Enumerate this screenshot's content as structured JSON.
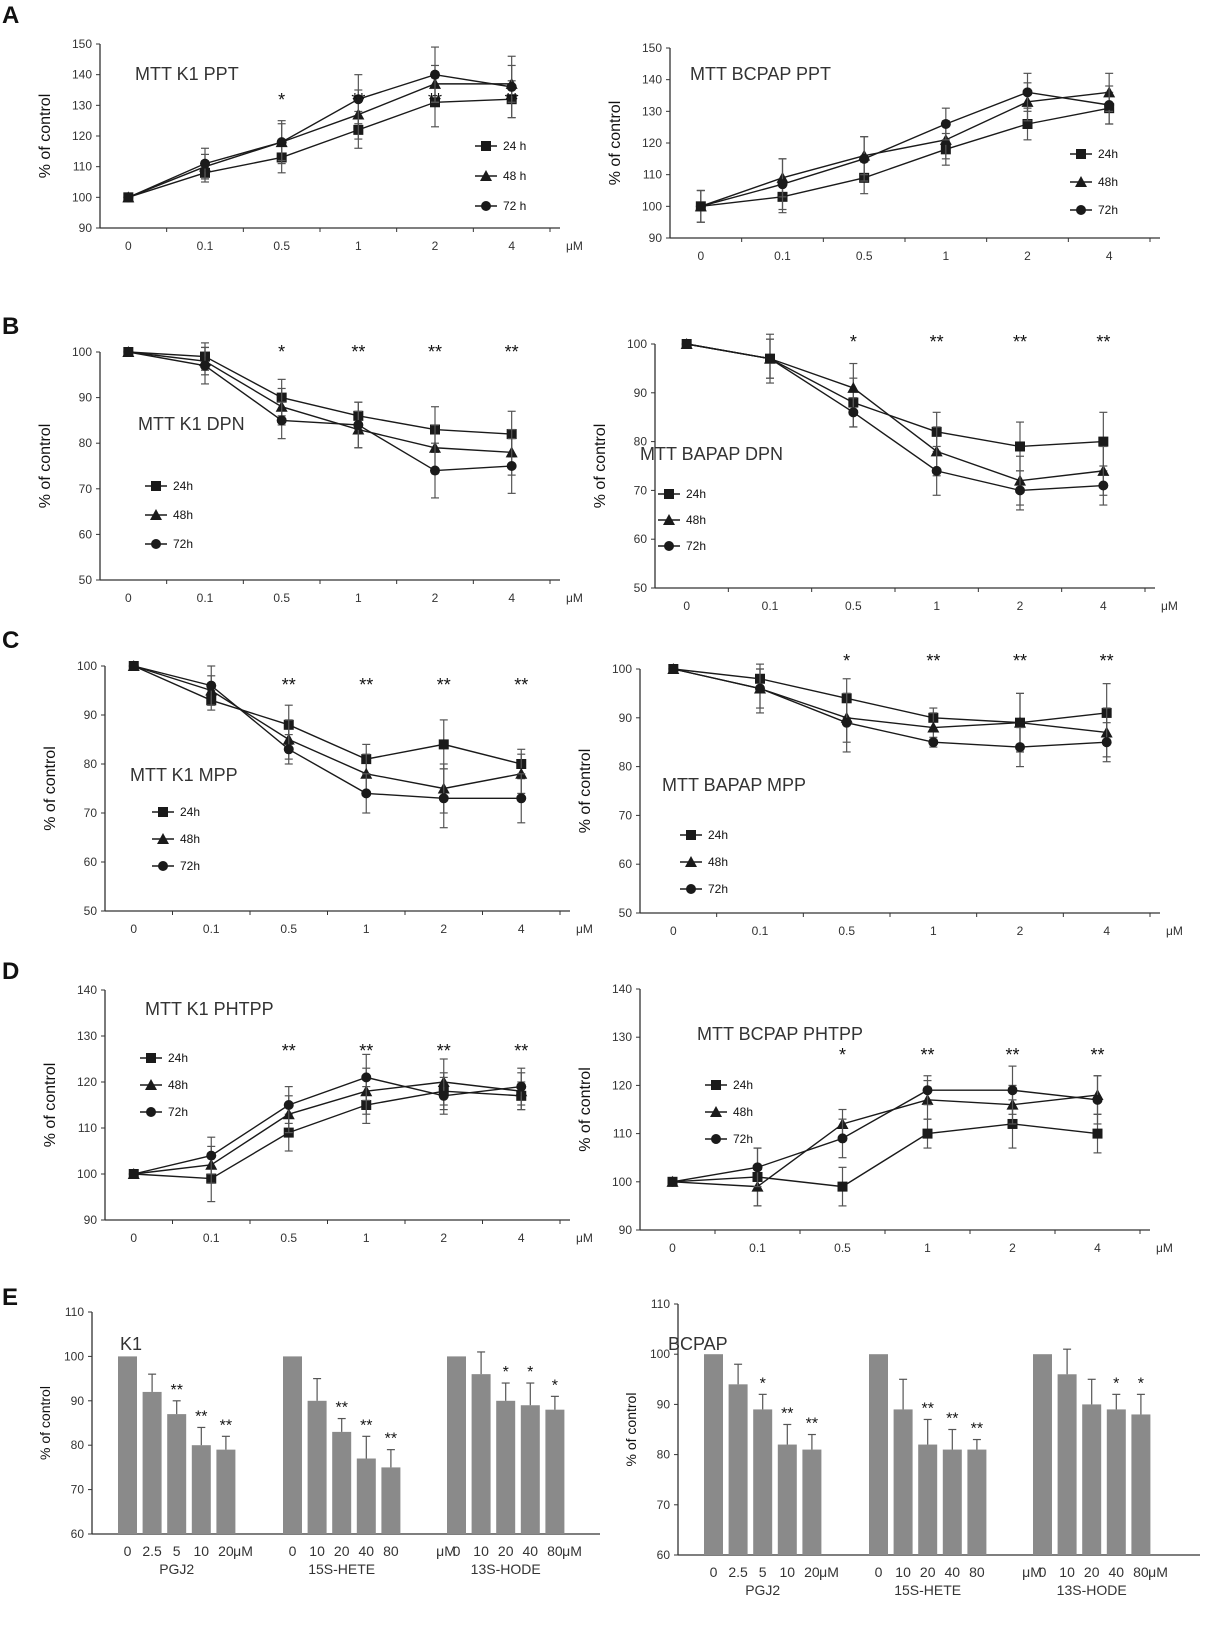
{
  "panels": [
    {
      "letter": "A"
    },
    {
      "letter": "B"
    },
    {
      "letter": "C"
    },
    {
      "letter": "D"
    },
    {
      "letter": "E"
    }
  ],
  "colors": {
    "series": "#1a1a1a",
    "bar": "#8a8a8a",
    "error": "#555555",
    "axis": "#333333"
  },
  "chart_data": [
    {
      "type": "line",
      "id": "A-K1",
      "title": "MTT K1 PPT",
      "ylabel": "% of control",
      "unit": "μM",
      "categories": [
        "0",
        "0.1",
        "0.5",
        "1",
        "2",
        "4"
      ],
      "ylim": [
        90,
        150
      ],
      "yticks": [
        90,
        100,
        110,
        120,
        130,
        140,
        150
      ],
      "significance": [
        "",
        "",
        "*",
        "**",
        "**",
        "**"
      ],
      "series": [
        {
          "name": "24 h",
          "marker": "square",
          "values": [
            100,
            108,
            113,
            122,
            131,
            132
          ],
          "errors": [
            0,
            3,
            5,
            6,
            8,
            6
          ]
        },
        {
          "name": "48 h",
          "marker": "triangle",
          "values": [
            100,
            110,
            118,
            127,
            137,
            137
          ],
          "errors": [
            0,
            4,
            6,
            8,
            6,
            6
          ]
        },
        {
          "name": "72 h",
          "marker": "circle",
          "values": [
            100,
            111,
            118,
            132,
            140,
            136
          ],
          "errors": [
            0,
            5,
            7,
            8,
            9,
            10
          ]
        }
      ]
    },
    {
      "type": "line",
      "id": "A-BCPAP",
      "title": "MTT BCPAP PPT",
      "ylabel": "% of control",
      "unit": "",
      "categories": [
        "0",
        "0.1",
        "0.5",
        "1",
        "2",
        "4"
      ],
      "ylim": [
        90,
        150
      ],
      "yticks": [
        90,
        100,
        110,
        120,
        130,
        140,
        150
      ],
      "significance": [
        "",
        "",
        "",
        "",
        "",
        ""
      ],
      "series": [
        {
          "name": "24h",
          "marker": "square",
          "values": [
            100,
            103,
            109,
            118,
            126,
            131
          ],
          "errors": [
            5,
            5,
            5,
            5,
            5,
            5
          ]
        },
        {
          "name": "48h",
          "marker": "triangle",
          "values": [
            100,
            109,
            116,
            121,
            133,
            136
          ],
          "errors": [
            5,
            6,
            6,
            6,
            6,
            6
          ]
        },
        {
          "name": "72h",
          "marker": "circle",
          "values": [
            100,
            107,
            115,
            126,
            136,
            132
          ],
          "errors": [
            5,
            8,
            7,
            5,
            6,
            6
          ]
        }
      ]
    },
    {
      "type": "line",
      "id": "B-K1",
      "title": "MTT K1 DPN",
      "ylabel": "% of control",
      "unit": "μM",
      "categories": [
        "0",
        "0.1",
        "0.5",
        "1",
        "2",
        "4"
      ],
      "ylim": [
        50,
        100
      ],
      "yticks": [
        50,
        60,
        70,
        80,
        90,
        100
      ],
      "significance": [
        "",
        "",
        "*",
        "**",
        "**",
        "**"
      ],
      "series": [
        {
          "name": "24h",
          "marker": "square",
          "values": [
            100,
            99,
            90,
            86,
            83,
            82
          ],
          "errors": [
            0,
            3,
            4,
            3,
            5,
            5
          ]
        },
        {
          "name": "48h",
          "marker": "triangle",
          "values": [
            100,
            98,
            88,
            83,
            79,
            78
          ],
          "errors": [
            0,
            3,
            4,
            4,
            5,
            5
          ]
        },
        {
          "name": "72h",
          "marker": "circle",
          "values": [
            100,
            97,
            85,
            84,
            74,
            75
          ],
          "errors": [
            0,
            4,
            4,
            5,
            6,
            6
          ]
        }
      ]
    },
    {
      "type": "line",
      "id": "B-BAPAP",
      "title": "MTT BAPAP DPN",
      "ylabel": "% of control",
      "unit": "μM",
      "categories": [
        "0",
        "0.1",
        "0.5",
        "1",
        "2",
        "4"
      ],
      "ylim": [
        50,
        100
      ],
      "yticks": [
        50,
        60,
        70,
        80,
        90,
        100
      ],
      "significance": [
        "",
        "",
        "*",
        "**",
        "**",
        "**"
      ],
      "series": [
        {
          "name": "24h",
          "marker": "square",
          "values": [
            100,
            97,
            88,
            82,
            79,
            80
          ],
          "errors": [
            0,
            4,
            5,
            4,
            5,
            6
          ]
        },
        {
          "name": "48h",
          "marker": "triangle",
          "values": [
            100,
            97,
            91,
            78,
            72,
            74
          ],
          "errors": [
            0,
            4,
            5,
            5,
            5,
            5
          ]
        },
        {
          "name": "72h",
          "marker": "circle",
          "values": [
            100,
            97,
            86,
            74,
            70,
            71
          ],
          "errors": [
            0,
            5,
            3,
            5,
            4,
            4
          ]
        }
      ]
    },
    {
      "type": "line",
      "id": "C-K1",
      "title": "MTT K1 MPP",
      "ylabel": "% of control",
      "unit": "μM",
      "categories": [
        "0",
        "0.1",
        "0.5",
        "1",
        "2",
        "4"
      ],
      "ylim": [
        50,
        100
      ],
      "yticks": [
        50,
        60,
        70,
        80,
        90,
        100
      ],
      "significance": [
        "",
        "",
        "**",
        "**",
        "**",
        "**"
      ],
      "series": [
        {
          "name": "24h",
          "marker": "square",
          "values": [
            100,
            93,
            88,
            81,
            84,
            80
          ],
          "errors": [
            0,
            2,
            4,
            3,
            5,
            3
          ]
        },
        {
          "name": "48h",
          "marker": "triangle",
          "values": [
            100,
            95,
            85,
            78,
            75,
            78
          ],
          "errors": [
            0,
            3,
            4,
            4,
            5,
            4
          ]
        },
        {
          "name": "72h",
          "marker": "circle",
          "values": [
            100,
            96,
            83,
            74,
            73,
            73
          ],
          "errors": [
            0,
            4,
            3,
            4,
            6,
            5
          ]
        }
      ]
    },
    {
      "type": "line",
      "id": "C-BAPAP",
      "title": "MTT BAPAP MPP",
      "ylabel": "% of control",
      "unit": "μM",
      "categories": [
        "0",
        "0.1",
        "0.5",
        "1",
        "2",
        "4"
      ],
      "ylim": [
        50,
        100
      ],
      "yticks": [
        50,
        60,
        70,
        80,
        90,
        100
      ],
      "significance": [
        "",
        "",
        "*",
        "**",
        "**",
        "**"
      ],
      "series": [
        {
          "name": "24h",
          "marker": "square",
          "values": [
            100,
            98,
            94,
            90,
            89,
            91
          ],
          "errors": [
            0,
            2,
            4,
            2,
            6,
            6
          ]
        },
        {
          "name": "48h",
          "marker": "triangle",
          "values": [
            100,
            96,
            90,
            88,
            89,
            87
          ],
          "errors": [
            0,
            4,
            5,
            3,
            6,
            5
          ]
        },
        {
          "name": "72h",
          "marker": "circle",
          "values": [
            100,
            96,
            89,
            85,
            84,
            85
          ],
          "errors": [
            0,
            5,
            6,
            1,
            4,
            4
          ]
        }
      ]
    },
    {
      "type": "line",
      "id": "D-K1",
      "title": "MTT K1  PHTPP",
      "ylabel": "% of control",
      "unit": "μM",
      "categories": [
        "0",
        "0.1",
        "0.5",
        "1",
        "2",
        "4"
      ],
      "ylim": [
        90,
        140
      ],
      "yticks": [
        90,
        100,
        110,
        120,
        130,
        140
      ],
      "significance": [
        "",
        "",
        "**",
        "**",
        "**",
        "**"
      ],
      "series": [
        {
          "name": "24h",
          "marker": "square",
          "values": [
            100,
            99,
            109,
            115,
            118,
            117
          ],
          "errors": [
            0,
            5,
            4,
            4,
            4,
            3
          ]
        },
        {
          "name": "48h",
          "marker": "triangle",
          "values": [
            100,
            102,
            113,
            118,
            120,
            118
          ],
          "errors": [
            0,
            4,
            4,
            5,
            5,
            4
          ]
        },
        {
          "name": "72h",
          "marker": "circle",
          "values": [
            100,
            104,
            115,
            121,
            117,
            119
          ],
          "errors": [
            0,
            4,
            4,
            5,
            4,
            4
          ]
        }
      ]
    },
    {
      "type": "line",
      "id": "D-BCPAP",
      "title": "MTT BCPAP PHTPP",
      "ylabel": "% of control",
      "unit": "μM",
      "categories": [
        "0",
        "0.1",
        "0.5",
        "1",
        "2",
        "4"
      ],
      "ylim": [
        90,
        140
      ],
      "yticks": [
        90,
        100,
        110,
        120,
        130,
        140
      ],
      "significance": [
        "",
        "",
        "*",
        "**",
        "**",
        "**"
      ],
      "series": [
        {
          "name": "24h",
          "marker": "square",
          "values": [
            100,
            101,
            99,
            110,
            112,
            110
          ],
          "errors": [
            0,
            6,
            4,
            3,
            5,
            4
          ]
        },
        {
          "name": "48h",
          "marker": "triangle",
          "values": [
            100,
            99,
            112,
            117,
            116,
            118
          ],
          "errors": [
            0,
            4,
            3,
            4,
            4,
            4
          ]
        },
        {
          "name": "72h",
          "marker": "circle",
          "values": [
            100,
            103,
            109,
            119,
            119,
            117
          ],
          "errors": [
            0,
            4,
            4,
            3,
            5,
            5
          ]
        }
      ]
    },
    {
      "type": "bar",
      "id": "E-K1",
      "title": "K1",
      "ylabel": "% of control",
      "ylim": [
        60,
        110
      ],
      "yticks": [
        60,
        70,
        80,
        90,
        100,
        110
      ],
      "tick_row": [
        "0",
        "2.5",
        "5",
        "10",
        "20",
        "μM",
        "0",
        "10",
        "20",
        "40",
        "80",
        "μM",
        "0",
        "10",
        "20",
        "40",
        "80",
        "μM"
      ],
      "groups": [
        {
          "name": "PGJ2",
          "values": [
            100,
            92,
            87,
            80,
            79
          ],
          "errors": [
            0,
            4,
            3,
            4,
            3
          ],
          "significance": [
            "",
            "",
            "**",
            "**",
            "**"
          ]
        },
        {
          "name": "15S-HETE",
          "values": [
            100,
            90,
            83,
            77,
            75
          ],
          "errors": [
            0,
            5,
            3,
            5,
            4
          ],
          "significance": [
            "",
            "",
            "**",
            "**",
            "**"
          ]
        },
        {
          "name": "13S-HODE",
          "values": [
            100,
            96,
            90,
            89,
            88
          ],
          "errors": [
            0,
            5,
            4,
            5,
            3
          ],
          "significance": [
            "",
            "",
            "*",
            "*",
            "*"
          ]
        }
      ]
    },
    {
      "type": "bar",
      "id": "E-BCPAP",
      "title": "BCPAP",
      "ylabel": "% of control",
      "ylim": [
        60,
        110
      ],
      "yticks": [
        60,
        70,
        80,
        90,
        100,
        110
      ],
      "tick_row": [
        "0",
        "2.5",
        "5",
        "10",
        "20",
        "μM",
        "0",
        "10",
        "20",
        "40",
        "80",
        "μM",
        "0",
        "10",
        "20",
        "40",
        "80",
        "μM"
      ],
      "groups": [
        {
          "name": "PGJ2",
          "values": [
            100,
            94,
            89,
            82,
            81
          ],
          "errors": [
            0,
            4,
            3,
            4,
            3
          ],
          "significance": [
            "",
            "",
            "*",
            "**",
            "**"
          ]
        },
        {
          "name": "15S-HETE",
          "values": [
            100,
            89,
            82,
            81,
            81
          ],
          "errors": [
            0,
            6,
            5,
            4,
            2
          ],
          "significance": [
            "",
            "",
            "**",
            "**",
            "**"
          ]
        },
        {
          "name": "13S-HODE",
          "values": [
            100,
            96,
            90,
            89,
            88
          ],
          "errors": [
            0,
            5,
            5,
            3,
            4
          ],
          "significance": [
            "",
            "",
            "",
            "*",
            "*"
          ]
        }
      ]
    }
  ]
}
